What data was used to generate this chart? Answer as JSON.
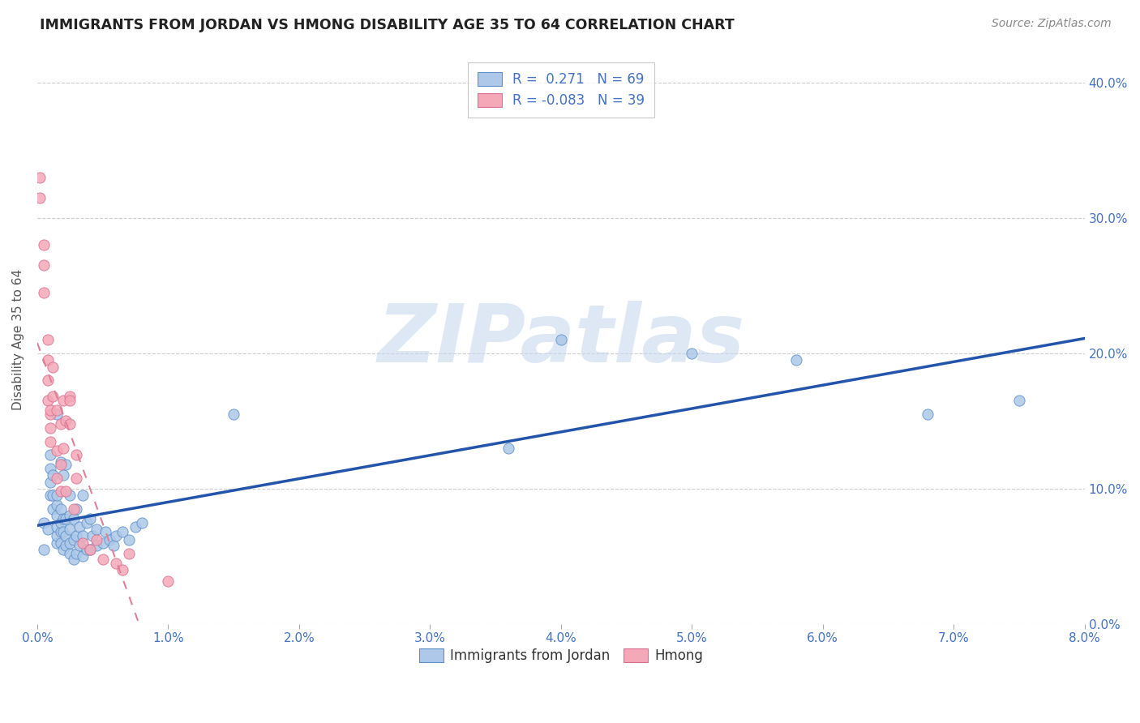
{
  "title": "IMMIGRANTS FROM JORDAN VS HMONG DISABILITY AGE 35 TO 64 CORRELATION CHART",
  "source": "Source: ZipAtlas.com",
  "ylabel_label": "Disability Age 35 to 64",
  "xlim": [
    0.0,
    0.08
  ],
  "ylim": [
    0.0,
    0.42
  ],
  "jordan_R": 0.271,
  "jordan_N": 69,
  "hmong_R": -0.083,
  "hmong_N": 39,
  "jordan_color": "#adc8e8",
  "hmong_color": "#f4a8b8",
  "jordan_edge_color": "#6090c8",
  "hmong_edge_color": "#d87090",
  "jordan_line_color": "#2255aa",
  "hmong_line_color": "#e08098",
  "background_color": "#ffffff",
  "grid_color": "#cccccc",
  "title_color": "#222222",
  "source_color": "#888888",
  "tick_color": "#4472c4",
  "watermark_color": "#c8d8ee",
  "jordan_points_x": [
    0.0005,
    0.0005,
    0.0008,
    0.001,
    0.001,
    0.001,
    0.001,
    0.0012,
    0.0012,
    0.0012,
    0.0015,
    0.0015,
    0.0015,
    0.0015,
    0.0015,
    0.0015,
    0.0015,
    0.0018,
    0.0018,
    0.0018,
    0.0018,
    0.0018,
    0.002,
    0.002,
    0.002,
    0.002,
    0.0022,
    0.0022,
    0.0022,
    0.0022,
    0.0025,
    0.0025,
    0.0025,
    0.0025,
    0.0025,
    0.0028,
    0.0028,
    0.0028,
    0.003,
    0.003,
    0.003,
    0.0032,
    0.0032,
    0.0035,
    0.0035,
    0.0035,
    0.0038,
    0.0038,
    0.004,
    0.004,
    0.0042,
    0.0045,
    0.0045,
    0.005,
    0.0052,
    0.0055,
    0.0058,
    0.006,
    0.0065,
    0.007,
    0.0075,
    0.008,
    0.015,
    0.036,
    0.04,
    0.05,
    0.058,
    0.068,
    0.075
  ],
  "jordan_points_y": [
    0.055,
    0.075,
    0.07,
    0.095,
    0.105,
    0.115,
    0.125,
    0.085,
    0.095,
    0.11,
    0.06,
    0.065,
    0.072,
    0.08,
    0.088,
    0.095,
    0.155,
    0.06,
    0.068,
    0.075,
    0.085,
    0.12,
    0.055,
    0.068,
    0.078,
    0.11,
    0.058,
    0.065,
    0.078,
    0.118,
    0.052,
    0.06,
    0.07,
    0.08,
    0.095,
    0.048,
    0.062,
    0.078,
    0.052,
    0.065,
    0.085,
    0.058,
    0.072,
    0.05,
    0.065,
    0.095,
    0.055,
    0.075,
    0.055,
    0.078,
    0.065,
    0.058,
    0.07,
    0.06,
    0.068,
    0.062,
    0.058,
    0.065,
    0.068,
    0.062,
    0.072,
    0.075,
    0.155,
    0.13,
    0.21,
    0.2,
    0.195,
    0.155,
    0.165
  ],
  "hmong_points_x": [
    0.0002,
    0.0002,
    0.0005,
    0.0005,
    0.0005,
    0.0008,
    0.0008,
    0.0008,
    0.0008,
    0.001,
    0.001,
    0.001,
    0.001,
    0.0012,
    0.0012,
    0.0015,
    0.0015,
    0.0015,
    0.0018,
    0.0018,
    0.0018,
    0.002,
    0.002,
    0.0022,
    0.0022,
    0.0025,
    0.0025,
    0.0025,
    0.0028,
    0.003,
    0.003,
    0.0035,
    0.004,
    0.0045,
    0.005,
    0.006,
    0.0065,
    0.007,
    0.01
  ],
  "hmong_points_y": [
    0.33,
    0.315,
    0.28,
    0.265,
    0.245,
    0.21,
    0.195,
    0.18,
    0.165,
    0.155,
    0.145,
    0.135,
    0.158,
    0.168,
    0.19,
    0.108,
    0.128,
    0.158,
    0.098,
    0.118,
    0.148,
    0.13,
    0.165,
    0.098,
    0.15,
    0.168,
    0.148,
    0.165,
    0.085,
    0.125,
    0.108,
    0.06,
    0.055,
    0.062,
    0.048,
    0.045,
    0.04,
    0.052,
    0.032
  ]
}
